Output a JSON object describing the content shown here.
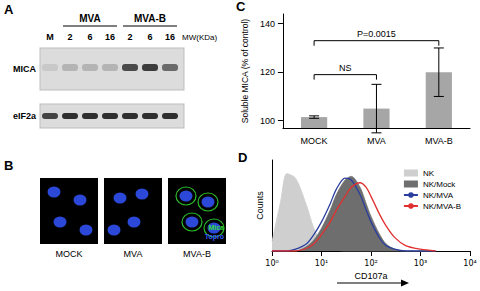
{
  "panels": {
    "A": {
      "label": "A",
      "marker_lane": "M",
      "groups": [
        {
          "name": "MVA",
          "lanes": [
            "2",
            "6",
            "16"
          ]
        },
        {
          "name": "MVA-B",
          "lanes": [
            "2",
            "6",
            "16"
          ]
        }
      ],
      "mw_label": "MW(KDa)",
      "rows": [
        "MICA",
        "eIF2a"
      ]
    },
    "B": {
      "label": "B",
      "images": [
        "MOCK",
        "MVA",
        "MVA-B"
      ],
      "stains": [
        {
          "name": "Mica",
          "color": "#33dd33"
        },
        {
          "name": "Topro",
          "color": "#3355ff"
        }
      ]
    }
  },
  "chart_data": [
    {
      "panel": "C",
      "type": "bar",
      "categories": [
        "MOCK",
        "MVA",
        "MVA-B"
      ],
      "values": [
        101.5,
        105,
        120
      ],
      "errors": [
        0.5,
        10,
        10
      ],
      "color": "#a6a6a6",
      "y_label": "Soluble MICA (% of control)",
      "ylim": [
        97,
        144
      ],
      "yticks": [
        100,
        120,
        140
      ],
      "grid": false,
      "annotations": [
        {
          "text": "NS",
          "from": "MOCK",
          "to": "MVA",
          "y": 119
        },
        {
          "text": "P=0.0015",
          "from": "MOCK",
          "to": "MVA-B",
          "y": 133
        }
      ]
    },
    {
      "panel": "D",
      "type": "line",
      "x_label": "CD107a",
      "y_label": "Counts",
      "log": "x",
      "xlim": [
        1,
        10000
      ],
      "xticks": [
        {
          "value": 1,
          "label": "10⁰"
        },
        {
          "value": 10,
          "label": "10¹"
        },
        {
          "value": 100,
          "label": "10²"
        },
        {
          "value": 1000,
          "label": "10³"
        },
        {
          "value": 10000,
          "label": "10⁴"
        }
      ],
      "ylim": [
        0,
        100
      ],
      "tick_labels": "x",
      "legend": "upper right",
      "x": [
        1,
        1.5,
        2,
        3,
        5,
        7,
        10,
        15,
        20,
        30,
        40,
        60,
        80,
        100,
        150,
        200,
        300,
        500,
        1000,
        2000
      ],
      "series": [
        {
          "name": "NK",
          "type": "area",
          "color": "#cfcfcf",
          "values": [
            10,
            55,
            85,
            80,
            50,
            25,
            10,
            3,
            1,
            0,
            0,
            0,
            0,
            0,
            0,
            0,
            0,
            0,
            0,
            0
          ]
        },
        {
          "name": "NK/Mock",
          "type": "area",
          "color": "#6e6e6e",
          "values": [
            0,
            0,
            0,
            0,
            5,
            12,
            25,
            45,
            62,
            78,
            82,
            70,
            52,
            38,
            18,
            8,
            2,
            0,
            0,
            0
          ]
        },
        {
          "name": "NK/MVA",
          "type": "line",
          "color": "#2b3f9e",
          "values": [
            0,
            0,
            0,
            2,
            8,
            18,
            32,
            52,
            68,
            80,
            78,
            62,
            45,
            32,
            14,
            6,
            2,
            0,
            0,
            0
          ]
        },
        {
          "name": "NK/MVA-B",
          "type": "line",
          "color": "#e03030",
          "values": [
            0,
            0,
            0,
            0,
            3,
            8,
            18,
            32,
            45,
            60,
            70,
            75,
            70,
            60,
            40,
            28,
            15,
            6,
            2,
            0
          ]
        }
      ]
    }
  ]
}
